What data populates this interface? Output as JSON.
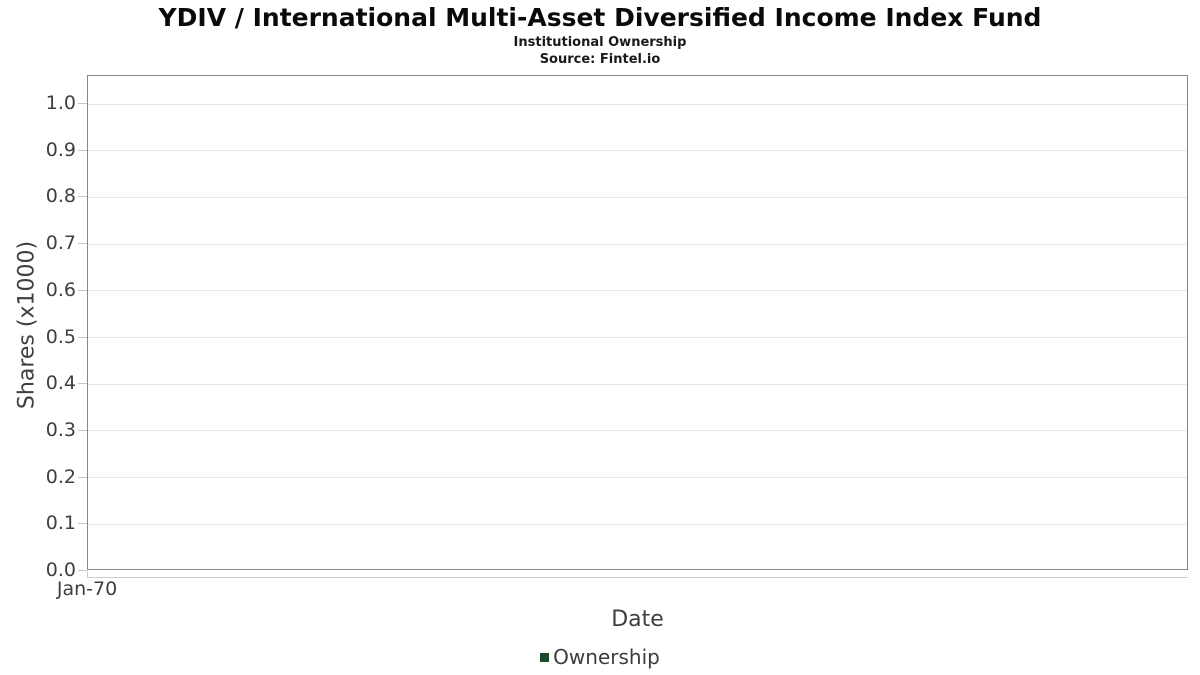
{
  "chart_data": {
    "type": "line",
    "title": "YDIV / International Multi-Asset Diversified Income Index Fund",
    "subtitle": "Institutional Ownership",
    "source": "Source: Fintel.io",
    "xlabel": "Date",
    "ylabel": "Shares (x1000)",
    "x_tick_labels": [
      "Jan-70"
    ],
    "y_ticks": [
      0.0,
      0.1,
      0.2,
      0.3,
      0.4,
      0.5,
      0.6,
      0.7,
      0.8,
      0.9,
      1.0
    ],
    "y_tick_decimals": 1,
    "ylim": [
      0,
      1.06
    ],
    "grid": true,
    "legend": {
      "position": "bottom",
      "items": [
        {
          "label": "Ownership",
          "color": "#1c4a2b"
        }
      ]
    },
    "series": [
      {
        "name": "Ownership",
        "x": [],
        "values": []
      }
    ],
    "colors": {
      "title_text": "#0a0a0a",
      "axis_text": "#3f3f3f",
      "plot_border": "#868686",
      "gridline": "#e7e7e7",
      "tick_mark": "#c6c6c6",
      "axis_line": "#cccccc",
      "series_ownership": "#1c4a2b",
      "background": "#ffffff"
    }
  }
}
